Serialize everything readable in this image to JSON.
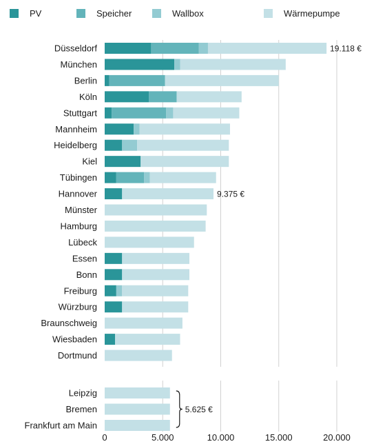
{
  "chart_data": {
    "type": "bar",
    "stacked": true,
    "orientation": "horizontal",
    "legend_position": "top",
    "grid": true,
    "xlim": [
      0,
      20000
    ],
    "x_ticks": [
      "0",
      "5.000",
      "10.000",
      "15.000",
      "20.000"
    ],
    "x_tick_values": [
      0,
      5000,
      10000,
      15000,
      20000
    ],
    "series": [
      {
        "name": "PV",
        "color": "#2a9599"
      },
      {
        "name": "Speicher",
        "color": "#63b4ba"
      },
      {
        "name": "Wallbox",
        "color": "#93cbd2"
      },
      {
        "name": "Wärmepumpe",
        "color": "#c3e0e6"
      }
    ],
    "groups": [
      {
        "categories": [
          "Düsseldorf",
          "München",
          "Berlin",
          "Köln",
          "Stuttgart",
          "Mannheim",
          "Heidelberg",
          "Kiel",
          "Tübingen",
          "Hannover",
          "Münster",
          "Hamburg",
          "Lübeck",
          "Essen",
          "Bonn",
          "Freiburg",
          "Würzburg",
          "Braunschweig",
          "Wiesbaden",
          "Dortmund"
        ],
        "values": {
          "PV": [
            4000,
            6000,
            400,
            3800,
            600,
            2500,
            1500,
            3100,
            1000,
            1500,
            0,
            0,
            0,
            1500,
            1500,
            1000,
            1500,
            0,
            900,
            0
          ],
          "Speicher": [
            4100,
            0,
            4800,
            2400,
            4700,
            0,
            0,
            0,
            2400,
            0,
            0,
            0,
            0,
            0,
            0,
            0,
            0,
            0,
            0,
            0
          ],
          "Wallbox": [
            800,
            500,
            0,
            0,
            600,
            500,
            1300,
            0,
            500,
            0,
            0,
            0,
            0,
            0,
            0,
            500,
            0,
            0,
            0,
            0
          ],
          "Wärmepumpe": [
            10218,
            9100,
            9800,
            5600,
            5700,
            7800,
            7900,
            7600,
            5700,
            7875,
            8800,
            8700,
            7700,
            5800,
            5800,
            5700,
            5700,
            6700,
            5600,
            5800
          ]
        }
      },
      {
        "categories": [
          "Leipzig",
          "Bremen",
          "Frankfurt am Main"
        ],
        "values": {
          "PV": [
            0,
            0,
            0
          ],
          "Speicher": [
            0,
            0,
            0
          ],
          "Wallbox": [
            0,
            0,
            0
          ],
          "Wärmepumpe": [
            5625,
            5625,
            5625
          ]
        }
      }
    ],
    "annotations": [
      {
        "group": 0,
        "category": "Düsseldorf",
        "text": "19.118 €"
      },
      {
        "group": 0,
        "category": "Hannover",
        "text": "9.375 €"
      },
      {
        "group": 1,
        "bracket": true,
        "text": "5.625 €"
      }
    ]
  }
}
